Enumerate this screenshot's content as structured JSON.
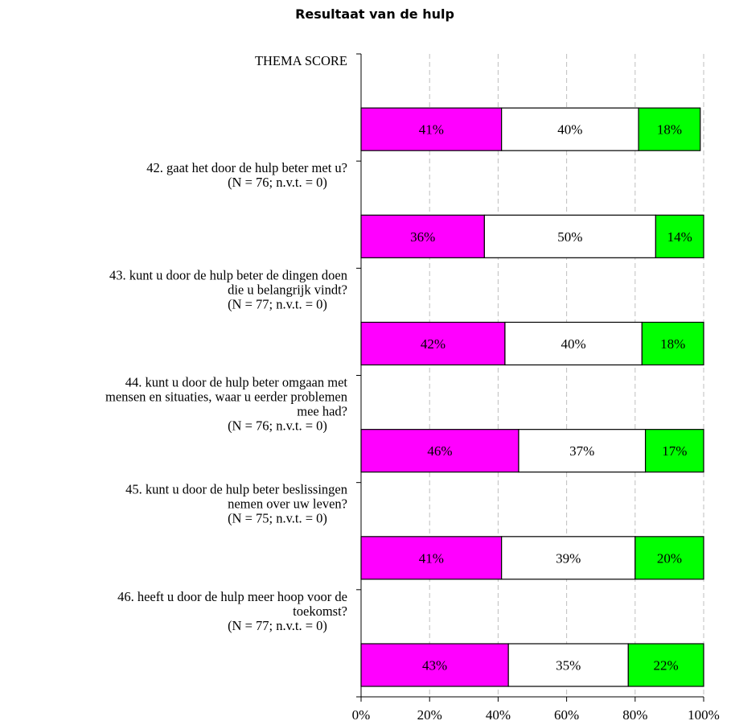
{
  "chart_data": {
    "type": "bar",
    "orientation": "horizontal",
    "stacked": true,
    "title": "Resultaat van de hulp",
    "xlabel": "",
    "ylabel": "",
    "xlim": [
      0,
      100
    ],
    "x_ticks": [
      "0%",
      "20%",
      "40%",
      "60%",
      "80%",
      "100%"
    ],
    "grid": true,
    "legend": "none",
    "categories": [
      [
        "THEMA SCORE"
      ],
      [
        "42. gaat het door de hulp beter met u?",
        "(N = 76; n.v.t. = 0)"
      ],
      [
        "43. kunt u door de hulp beter de dingen doen",
        "die u belangrijk vindt?",
        "(N = 77; n.v.t. = 0)"
      ],
      [
        "44. kunt u door de hulp beter omgaan met",
        "mensen en situaties, waar u eerder problemen",
        "mee had?",
        "(N = 76; n.v.t. = 0)"
      ],
      [
        "45. kunt u door de hulp beter beslissingen",
        "nemen over uw leven?",
        "(N = 75; n.v.t. = 0)"
      ],
      [
        "46. heeft u door de hulp meer hoop voor de",
        "toekomst?",
        "(N = 77; n.v.t. = 0)"
      ]
    ],
    "series": [
      {
        "color": "#FF00FF",
        "values": [
          41,
          36,
          42,
          46,
          41,
          43
        ],
        "labels": [
          "41%",
          "36%",
          "42%",
          "46%",
          "41%",
          "43%"
        ]
      },
      {
        "color": "#FFFFFF",
        "values": [
          40,
          50,
          40,
          37,
          39,
          35
        ],
        "labels": [
          "40%",
          "50%",
          "40%",
          "37%",
          "39%",
          "35%"
        ]
      },
      {
        "color": "#00FF00",
        "values": [
          18,
          14,
          18,
          17,
          20,
          22
        ],
        "labels": [
          "18%",
          "14%",
          "18%",
          "17%",
          "20%",
          "22%"
        ]
      }
    ]
  }
}
